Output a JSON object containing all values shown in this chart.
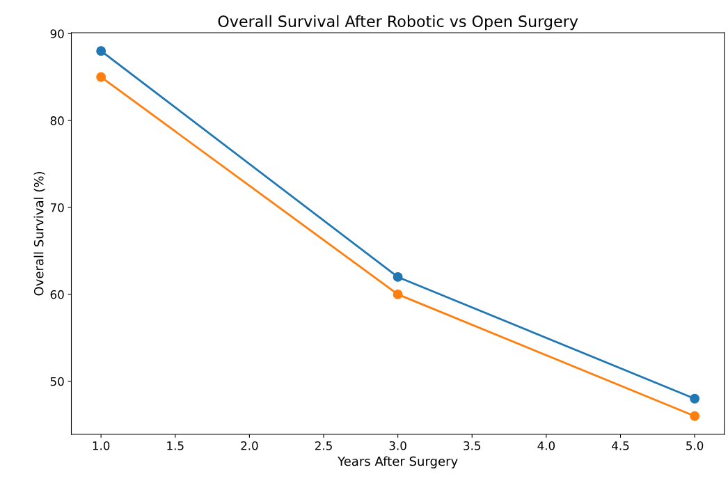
{
  "chart_data": {
    "type": "line",
    "title": "Overall Survival After Robotic vs Open Surgery",
    "xlabel": "Years After Surgery",
    "ylabel": "Overall Survival (%)",
    "x": [
      1,
      3,
      5
    ],
    "series": [
      {
        "color": "#1f77b4",
        "values": [
          88,
          62,
          48
        ]
      },
      {
        "color": "#ff7f0e",
        "values": [
          85,
          60,
          46
        ]
      }
    ],
    "xlim": [
      0.8,
      5.2
    ],
    "xticks": [
      {
        "value": 1,
        "label": "1.0"
      },
      {
        "value": 1.5,
        "label": "1.5"
      },
      {
        "value": 2,
        "label": "2.0"
      },
      {
        "value": 2.5,
        "label": "2.5"
      },
      {
        "value": 3,
        "label": "3.0"
      },
      {
        "value": 3.5,
        "label": "3.5"
      },
      {
        "value": 4,
        "label": "4.0"
      },
      {
        "value": 4.5,
        "label": "4.5"
      },
      {
        "value": 5,
        "label": "5.0"
      }
    ],
    "ylim": [
      43.9,
      90.1
    ],
    "yticks": [
      50,
      60,
      70,
      80,
      90
    ],
    "marker": "circle",
    "line_style": "solid",
    "grid": false
  }
}
